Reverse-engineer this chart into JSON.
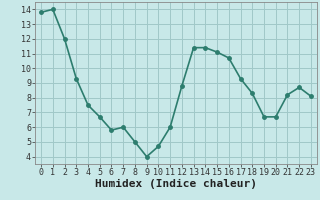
{
  "x": [
    0,
    1,
    2,
    3,
    4,
    5,
    6,
    7,
    8,
    9,
    10,
    11,
    12,
    13,
    14,
    15,
    16,
    17,
    18,
    19,
    20,
    21,
    22,
    23
  ],
  "y": [
    13.8,
    14.0,
    12.0,
    9.3,
    7.5,
    6.7,
    5.8,
    6.0,
    5.0,
    4.0,
    4.7,
    6.0,
    8.8,
    11.4,
    11.4,
    11.1,
    10.7,
    9.3,
    8.3,
    6.7,
    6.7,
    8.2,
    8.7,
    8.1
  ],
  "line_color": "#2d7d6e",
  "marker_color": "#2d7d6e",
  "bg_color": "#c8e8e8",
  "grid_color": "#a0c8c8",
  "xlabel": "Humidex (Indice chaleur)",
  "xlim": [
    -0.5,
    23.5
  ],
  "ylim": [
    3.5,
    14.5
  ],
  "yticks": [
    4,
    5,
    6,
    7,
    8,
    9,
    10,
    11,
    12,
    13,
    14
  ],
  "xticks": [
    0,
    1,
    2,
    3,
    4,
    5,
    6,
    7,
    8,
    9,
    10,
    11,
    12,
    13,
    14,
    15,
    16,
    17,
    18,
    19,
    20,
    21,
    22,
    23
  ],
  "tick_label_fontsize": 6,
  "xlabel_fontsize": 8,
  "line_width": 1.2,
  "marker_size": 2.5
}
